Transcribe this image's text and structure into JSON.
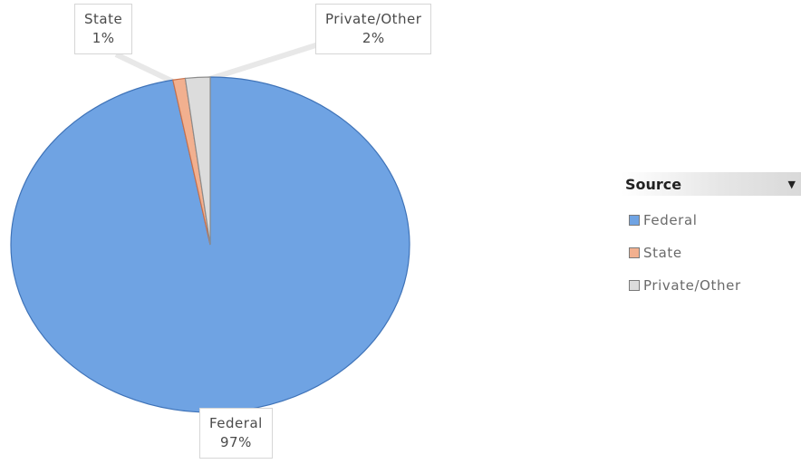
{
  "chart_data": {
    "type": "pie",
    "slices": [
      {
        "name": "Federal",
        "value": 97,
        "label": "97%",
        "color": "#6fa3e3",
        "stroke": "#3f73b8"
      },
      {
        "name": "State",
        "value": 1,
        "label": "1%",
        "color": "#f2b08f",
        "stroke": "#c9704a"
      },
      {
        "name": "Private/Other",
        "value": 2,
        "label": "2%",
        "color": "#dcdcdc",
        "stroke": "#8c8c8c"
      }
    ],
    "legend": {
      "title": "Source",
      "placement": "right",
      "items": [
        "Federal",
        "State",
        "Private/Other"
      ]
    }
  }
}
